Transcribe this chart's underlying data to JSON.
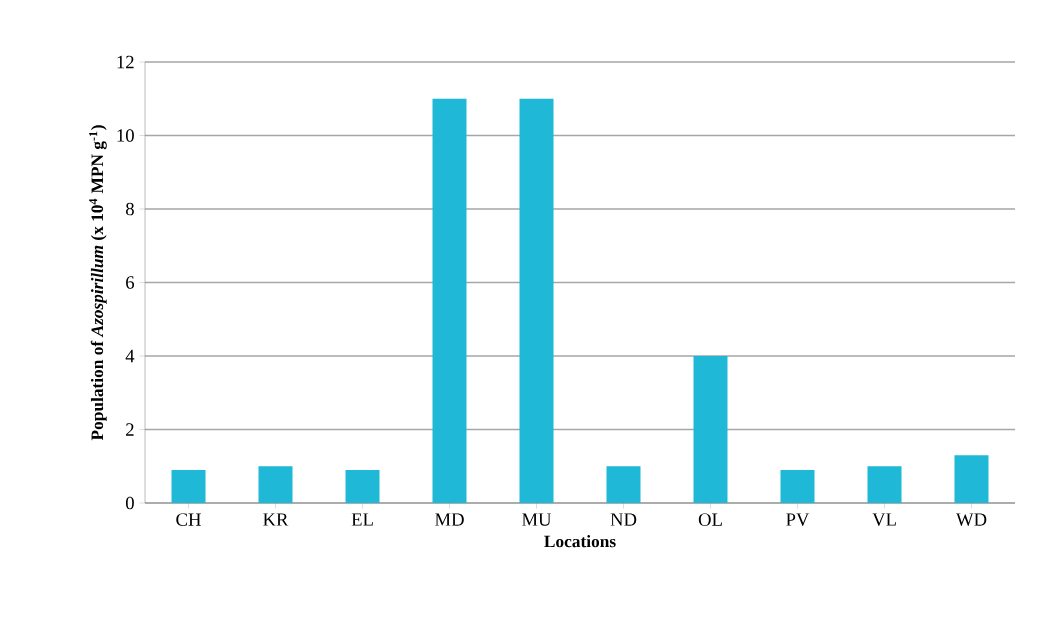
{
  "chart_data": {
    "type": "bar",
    "categories": [
      "CH",
      "KR",
      "EL",
      "MD",
      "MU",
      "ND",
      "OL",
      "PV",
      "VL",
      "WD"
    ],
    "values": [
      0.9,
      1.0,
      0.9,
      11,
      11,
      1.0,
      4,
      0.9,
      1.0,
      1.3
    ],
    "color": "#1fb8d6",
    "xlabel": "Locations",
    "ylabel": "Population of *Azospirillum*  (x 10$^{4}$ MPN g$^{-1}$)",
    "ylim": [
      0,
      12
    ],
    "yticks": [
      0,
      2,
      4,
      6,
      8,
      10,
      12
    ],
    "grid": "y"
  }
}
